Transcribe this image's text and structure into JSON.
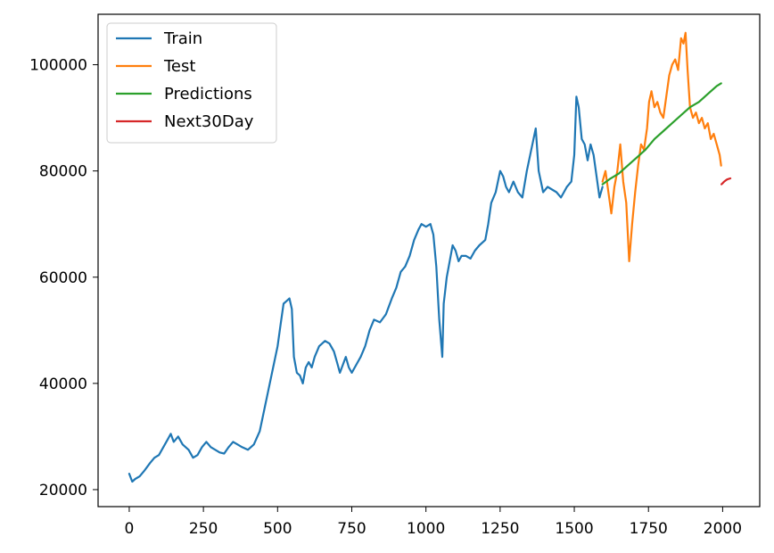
{
  "chart_data": {
    "type": "line",
    "title": "",
    "xlabel": "",
    "ylabel": "",
    "xlim": [
      -105,
      2125
    ],
    "ylim": [
      16800,
      109500
    ],
    "xticks": [
      0,
      250,
      500,
      750,
      1000,
      1250,
      1500,
      1750,
      2000
    ],
    "yticks": [
      20000,
      40000,
      60000,
      80000,
      100000
    ],
    "legend_position": "top-left",
    "grid": false,
    "series": [
      {
        "name": "Train",
        "color": "#1f77b4",
        "x": [
          0,
          10,
          20,
          35,
          50,
          70,
          85,
          100,
          115,
          130,
          140,
          150,
          165,
          180,
          200,
          215,
          230,
          245,
          260,
          275,
          290,
          305,
          320,
          335,
          350,
          365,
          380,
          400,
          420,
          440,
          455,
          470,
          485,
          500,
          510,
          520,
          530,
          540,
          548,
          555,
          565,
          575,
          585,
          595,
          605,
          615,
          625,
          640,
          660,
          675,
          690,
          700,
          710,
          720,
          730,
          740,
          750,
          765,
          780,
          795,
          810,
          825,
          845,
          865,
          885,
          900,
          915,
          930,
          945,
          960,
          975,
          985,
          1000,
          1015,
          1025,
          1035,
          1045,
          1055,
          1060,
          1070,
          1080,
          1090,
          1100,
          1110,
          1120,
          1135,
          1150,
          1165,
          1180,
          1200,
          1210,
          1220,
          1235,
          1250,
          1260,
          1270,
          1280,
          1295,
          1310,
          1325,
          1340,
          1355,
          1370,
          1380,
          1395,
          1410,
          1425,
          1440,
          1455,
          1465,
          1475,
          1490,
          1500,
          1507,
          1515,
          1525,
          1535,
          1545,
          1555,
          1565,
          1575,
          1585,
          1595
        ],
        "values": [
          23000,
          21500,
          22000,
          22500,
          23500,
          25000,
          26000,
          26500,
          28000,
          29500,
          30500,
          29000,
          30000,
          28500,
          27500,
          26000,
          26500,
          28000,
          29000,
          28000,
          27500,
          27000,
          26800,
          28000,
          29000,
          28500,
          28000,
          27500,
          28500,
          31000,
          35000,
          39000,
          43000,
          47000,
          51000,
          55000,
          55500,
          56000,
          54000,
          45000,
          42000,
          41500,
          40000,
          43000,
          44000,
          43000,
          45000,
          47000,
          48000,
          47500,
          46000,
          44000,
          42000,
          43500,
          45000,
          43000,
          42000,
          43500,
          45000,
          47000,
          50000,
          52000,
          51500,
          53000,
          56000,
          58000,
          61000,
          62000,
          64000,
          67000,
          69000,
          70000,
          69500,
          70000,
          68000,
          62000,
          52000,
          45000,
          55000,
          60000,
          63000,
          66000,
          65000,
          63000,
          64000,
          64000,
          63500,
          65000,
          66000,
          67000,
          70000,
          74000,
          76000,
          80000,
          79000,
          77000,
          76000,
          78000,
          76000,
          75000,
          80000,
          84000,
          88000,
          80000,
          76000,
          77000,
          76500,
          76000,
          75000,
          76000,
          77000,
          78000,
          83000,
          94000,
          92000,
          86000,
          85000,
          82000,
          85000,
          83000,
          79000,
          75000,
          77000
        ]
      },
      {
        "name": "Test",
        "color": "#ff7f0e",
        "x": [
          1595,
          1605,
          1615,
          1625,
          1635,
          1645,
          1655,
          1665,
          1675,
          1685,
          1695,
          1705,
          1715,
          1725,
          1735,
          1745,
          1752,
          1760,
          1770,
          1780,
          1790,
          1800,
          1810,
          1820,
          1830,
          1840,
          1850,
          1860,
          1868,
          1875,
          1882,
          1890,
          1900,
          1910,
          1920,
          1930,
          1940,
          1950,
          1960,
          1970,
          1980,
          1990,
          1995
        ],
        "values": [
          78000,
          80000,
          76000,
          72000,
          77000,
          80000,
          85000,
          78000,
          74000,
          63000,
          70000,
          76000,
          81000,
          85000,
          84000,
          88000,
          93000,
          95000,
          92000,
          93000,
          91000,
          90000,
          94000,
          98000,
          100000,
          101000,
          99000,
          105000,
          104000,
          106000,
          99000,
          92000,
          90000,
          91000,
          89000,
          90000,
          88000,
          89000,
          86000,
          87000,
          85000,
          83000,
          81000
        ]
      },
      {
        "name": "Predictions",
        "color": "#2ca02c",
        "x": [
          1595,
          1620,
          1650,
          1680,
          1710,
          1740,
          1770,
          1800,
          1830,
          1860,
          1890,
          1920,
          1950,
          1970,
          1980,
          1995
        ],
        "values": [
          77500,
          78500,
          79500,
          81000,
          82500,
          84000,
          86000,
          87500,
          89000,
          90500,
          92000,
          93000,
          94500,
          95500,
          96000,
          96500
        ]
      },
      {
        "name": "Next30Day",
        "color": "#d62728",
        "x": [
          1996,
          2000,
          2005,
          2010,
          2015,
          2020,
          2026
        ],
        "values": [
          77500,
          77700,
          78000,
          78200,
          78400,
          78500,
          78600
        ]
      }
    ]
  }
}
